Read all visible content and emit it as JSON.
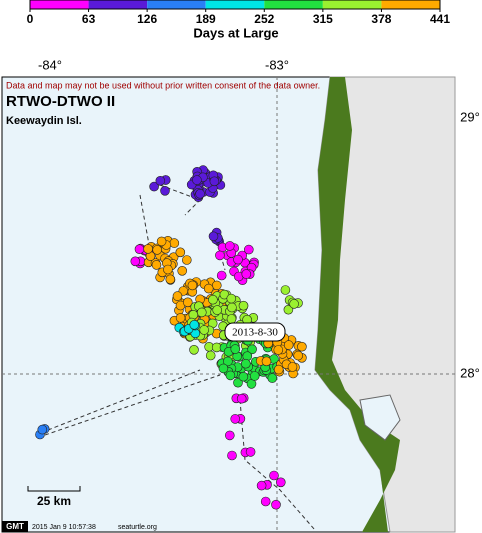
{
  "colorbar": {
    "label": "Days at Large",
    "ticks": [
      0,
      63,
      126,
      189,
      252,
      315,
      378,
      441
    ],
    "colors": [
      "#ff00ff",
      "#5a1ad8",
      "#2a7ff5",
      "#00e5e5",
      "#22e040",
      "#9af030",
      "#ffaa00"
    ]
  },
  "axes": {
    "lon_labels": [
      "-84°",
      "-83°"
    ],
    "lat_labels": [
      "29°",
      "28°"
    ]
  },
  "map": {
    "disclaimer": "Data and map may not be used without prior written consent of the data owner.",
    "title": "RTWO-DTWO II",
    "subtitle": "Keewaydin Isl.",
    "callout": "2013-8-30",
    "scale": "25 km"
  },
  "footer": {
    "gmt": "GMT",
    "timestamp": "2015 Jan  9 10:57:38",
    "site": "seaturtle.org"
  }
}
